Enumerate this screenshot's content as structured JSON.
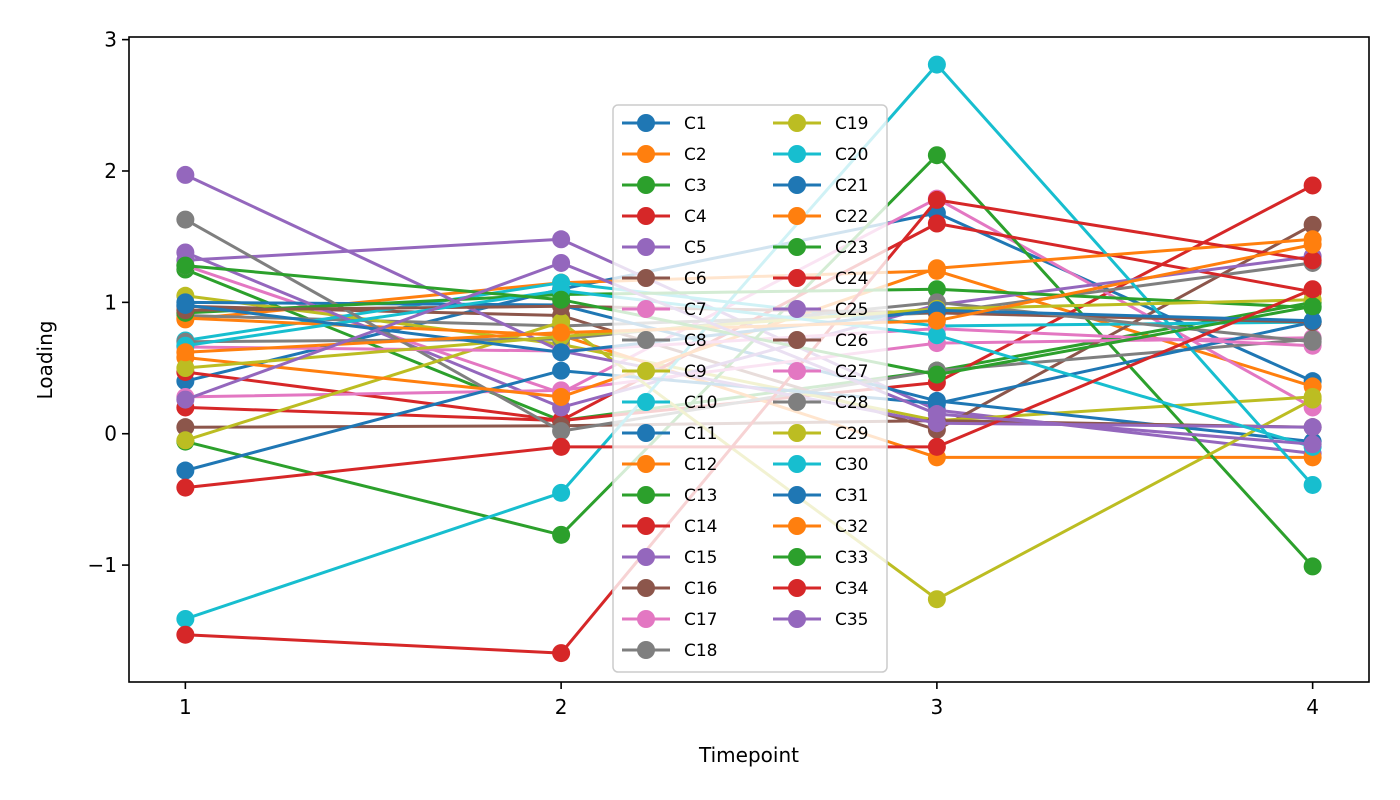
{
  "chart_data": {
    "type": "line",
    "title": "",
    "xlabel": "Timepoint",
    "ylabel": "Loading",
    "x": [
      1,
      2,
      3,
      4
    ],
    "xticks": [
      "1",
      "2",
      "3",
      "4"
    ],
    "yticks": [
      "−1",
      "0",
      "1",
      "2",
      "3"
    ],
    "ytick_values": [
      -1,
      0,
      1,
      2,
      3
    ],
    "xlim": [
      0.85,
      4.15
    ],
    "ylim": [
      -1.89,
      3.02
    ],
    "grid": false,
    "legend_placement": "center",
    "legend_columns": 2,
    "marker": "circle",
    "palette": [
      "#1f77b4",
      "#ff7f0e",
      "#2ca02c",
      "#d62728",
      "#9467bd",
      "#8c564b",
      "#e377c2",
      "#7f7f7f",
      "#bcbd22",
      "#17becf"
    ],
    "series": [
      {
        "name": "C1",
        "color": "#1f77b4",
        "values": [
          0.4,
          1.1,
          1.68,
          0.4
        ]
      },
      {
        "name": "C2",
        "color": "#ff7f0e",
        "values": [
          0.87,
          1.15,
          1.24,
          0.36
        ]
      },
      {
        "name": "C3",
        "color": "#2ca02c",
        "values": [
          1.25,
          0.1,
          0.48,
          1.0
        ]
      },
      {
        "name": "C4",
        "color": "#d62728",
        "values": [
          0.2,
          0.1,
          0.39,
          1.89
        ]
      },
      {
        "name": "C5",
        "color": "#9467bd",
        "values": [
          1.32,
          1.48,
          0.18,
          -0.15
        ]
      },
      {
        "name": "C6",
        "color": "#8c564b",
        "values": [
          0.97,
          0.9,
          0.03,
          1.59
        ]
      },
      {
        "name": "C7",
        "color": "#e377c2",
        "values": [
          1.28,
          0.31,
          1.79,
          0.2
        ]
      },
      {
        "name": "C8",
        "color": "#7f7f7f",
        "values": [
          0.9,
          0.82,
          0.92,
          1.3
        ]
      },
      {
        "name": "C9",
        "color": "#bcbd22",
        "values": [
          1.05,
          0.68,
          0.1,
          0.28
        ]
      },
      {
        "name": "C10",
        "color": "#17becf",
        "values": [
          0.71,
          1.15,
          0.82,
          0.85
        ]
      },
      {
        "name": "C11",
        "color": "#1f77b4",
        "values": [
          1.0,
          0.98,
          0.25,
          -0.06
        ]
      },
      {
        "name": "C12",
        "color": "#ff7f0e",
        "values": [
          0.88,
          0.75,
          -0.18,
          -0.18
        ]
      },
      {
        "name": "C13",
        "color": "#2ca02c",
        "values": [
          -0.06,
          -0.77,
          2.12,
          -1.01
        ]
      },
      {
        "name": "C14",
        "color": "#d62728",
        "values": [
          0.47,
          0.1,
          1.6,
          1.08
        ]
      },
      {
        "name": "C15",
        "color": "#9467bd",
        "values": [
          1.38,
          0.2,
          0.98,
          1.35
        ]
      },
      {
        "name": "C16",
        "color": "#8c564b",
        "values": [
          0.05,
          0.06,
          0.1,
          0.05
        ]
      },
      {
        "name": "C17",
        "color": "#e377c2",
        "values": [
          0.28,
          0.33,
          0.69,
          0.73
        ]
      },
      {
        "name": "C18",
        "color": "#7f7f7f",
        "values": [
          1.63,
          0.02,
          0.48,
          0.72
        ]
      },
      {
        "name": "C19",
        "color": "#bcbd22",
        "values": [
          -0.05,
          0.85,
          -1.26,
          0.26
        ]
      },
      {
        "name": "C20",
        "color": "#17becf",
        "values": [
          -1.41,
          -0.45,
          2.81,
          -0.39
        ]
      },
      {
        "name": "C21",
        "color": "#1f77b4",
        "values": [
          -0.28,
          0.48,
          0.23,
          0.85
        ]
      },
      {
        "name": "C22",
        "color": "#ff7f0e",
        "values": [
          0.58,
          0.28,
          1.26,
          1.48
        ]
      },
      {
        "name": "C23",
        "color": "#2ca02c",
        "values": [
          0.92,
          1.06,
          1.1,
          0.96
        ]
      },
      {
        "name": "C24",
        "color": "#d62728",
        "values": [
          -1.53,
          -1.67,
          1.78,
          1.32
        ]
      },
      {
        "name": "C25",
        "color": "#9467bd",
        "values": [
          1.97,
          0.63,
          0.08,
          0.05
        ]
      },
      {
        "name": "C26",
        "color": "#8c564b",
        "values": [
          0.94,
          0.97,
          0.92,
          0.85
        ]
      },
      {
        "name": "C27",
        "color": "#e377c2",
        "values": [
          0.66,
          0.63,
          0.8,
          0.67
        ]
      },
      {
        "name": "C28",
        "color": "#7f7f7f",
        "values": [
          0.7,
          0.72,
          1.0,
          0.7
        ]
      },
      {
        "name": "C29",
        "color": "#bcbd22",
        "values": [
          0.5,
          0.74,
          0.95,
          1.02
        ]
      },
      {
        "name": "C30",
        "color": "#17becf",
        "values": [
          0.67,
          1.09,
          0.75,
          -0.1
        ]
      },
      {
        "name": "C31",
        "color": "#1f77b4",
        "values": [
          0.98,
          0.62,
          0.94,
          0.86
        ]
      },
      {
        "name": "C32",
        "color": "#ff7f0e",
        "values": [
          0.62,
          0.77,
          0.86,
          1.44
        ]
      },
      {
        "name": "C33",
        "color": "#2ca02c",
        "values": [
          1.28,
          1.02,
          0.45,
          0.97
        ]
      },
      {
        "name": "C34",
        "color": "#d62728",
        "values": [
          -0.41,
          -0.1,
          -0.1,
          1.1
        ]
      },
      {
        "name": "C35",
        "color": "#9467bd",
        "values": [
          0.26,
          1.3,
          0.15,
          -0.08
        ]
      }
    ]
  }
}
